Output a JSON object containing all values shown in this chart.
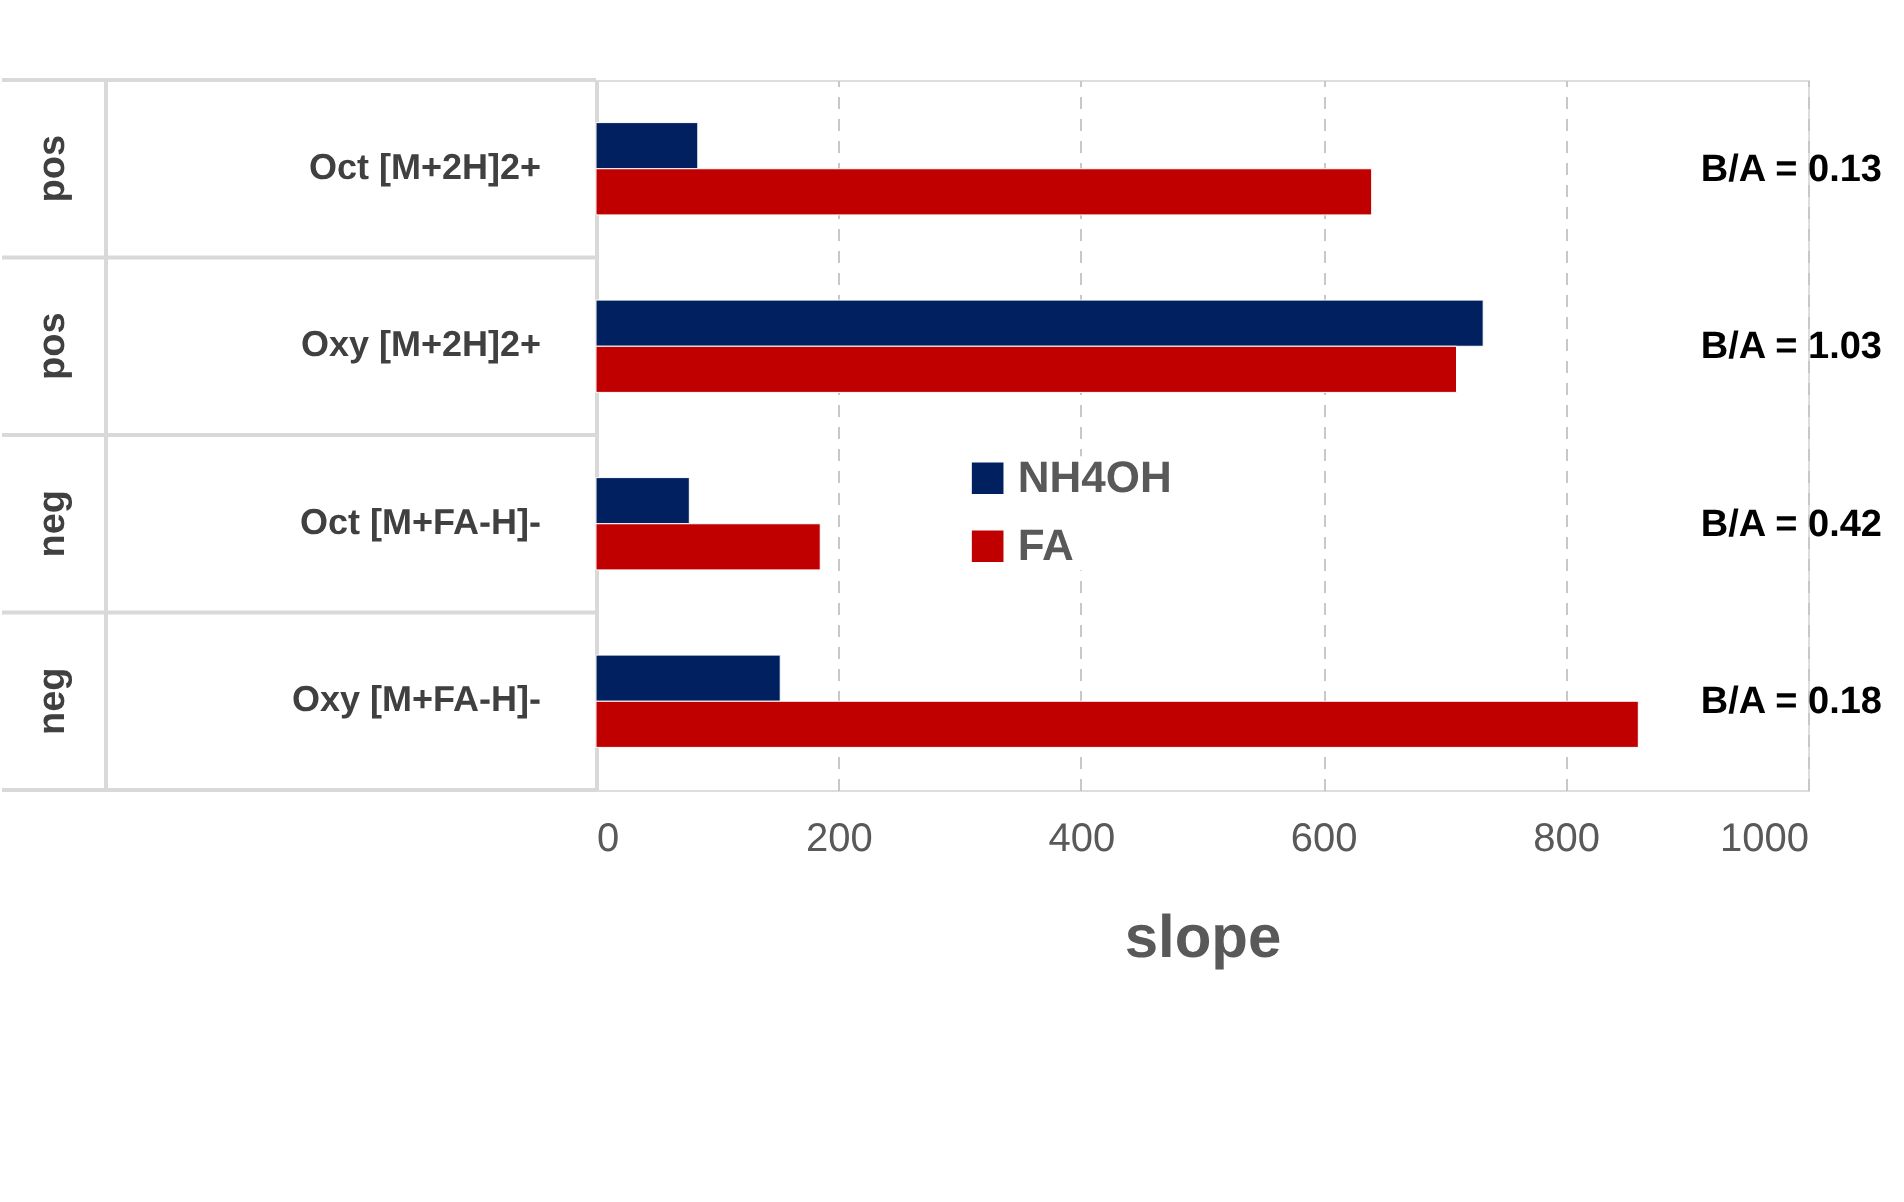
{
  "chart_data": {
    "type": "bar",
    "orientation": "horizontal",
    "xlabel": "slope",
    "categories": [
      "Oct [M+2H]2+",
      "Oxy [M+2H]2+",
      "Oct [M+FA-H]-",
      "Oxy [M+FA-H]-"
    ],
    "series": [
      {
        "name": "NH4OH",
        "color": "#002060",
        "values": [
          84,
          732,
          77,
          152
        ]
      },
      {
        "name": "FA",
        "color": "#c00000",
        "values": [
          640,
          710,
          185,
          860
        ]
      }
    ],
    "xlim": [
      0,
      1000
    ],
    "xticks": [
      0,
      200,
      400,
      600,
      800,
      1000
    ],
    "grid": "x",
    "legend": "center",
    "annotations": [
      "pos",
      "pos",
      "neg",
      "neg",
      "B/A = 0.13",
      "B/A = 1.03",
      "B/A = 0.42",
      "B/A = 0.18"
    ]
  }
}
